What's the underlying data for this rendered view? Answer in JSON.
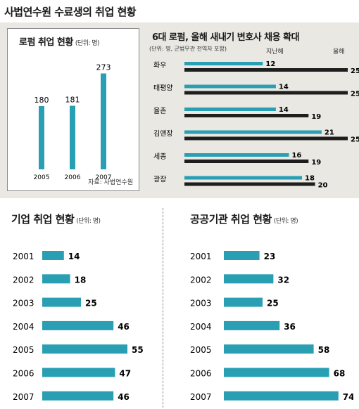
{
  "title": "사법연수원 수료생의 취업 현황",
  "colors": {
    "accent": "#2a9fb3",
    "dark": "#1e1e1e",
    "panel": "#e9e8e3"
  },
  "law_firm_panel": {
    "title": "로펌 취업 현황",
    "unit": "(단위: 명)",
    "source": "자료: 사법연수원"
  },
  "hiring_panel": {
    "title": "6대 로펌, 올해 새내기 변호사 채용 확대",
    "unit": "(단위: 명, 군법무관 전역자 포함)",
    "legend_last_year": "지난해",
    "legend_this_year": "올해"
  },
  "corporate_panel": {
    "title": "기업 취업 현황",
    "unit": "(단위: 명)"
  },
  "public_panel": {
    "title": "공공기관 취업 현황",
    "unit": "(단위: 명)"
  },
  "chart_data": [
    {
      "id": "law-firm-employment",
      "type": "bar",
      "title": "로펌 취업 현황",
      "categories": [
        "2005",
        "2006",
        "2007"
      ],
      "values": [
        180,
        181,
        273
      ],
      "ylim": [
        0,
        300
      ]
    },
    {
      "id": "big6-hiring",
      "type": "bar",
      "title": "6대 로펌, 올해 새내기 변호사 채용 확대",
      "categories": [
        "화우",
        "태평양",
        "율촌",
        "김앤장",
        "세종",
        "광장"
      ],
      "series": [
        {
          "name": "지난해",
          "values": [
            12,
            14,
            14,
            21,
            16,
            18
          ]
        },
        {
          "name": "올해",
          "values": [
            25,
            25,
            19,
            25,
            19,
            20
          ]
        }
      ],
      "xlim": [
        0,
        25
      ]
    },
    {
      "id": "corporate-employment",
      "type": "bar",
      "title": "기업 취업 현황",
      "categories": [
        "2001",
        "2002",
        "2003",
        "2004",
        "2005",
        "2006",
        "2007"
      ],
      "values": [
        14,
        18,
        25,
        46,
        55,
        47,
        46
      ],
      "xlim": [
        0,
        74
      ]
    },
    {
      "id": "public-employment",
      "type": "bar",
      "title": "공공기관 취업 현황",
      "categories": [
        "2001",
        "2002",
        "2003",
        "2004",
        "2005",
        "2006",
        "2007"
      ],
      "values": [
        23,
        32,
        25,
        36,
        58,
        68,
        74
      ],
      "xlim": [
        0,
        74
      ]
    }
  ]
}
